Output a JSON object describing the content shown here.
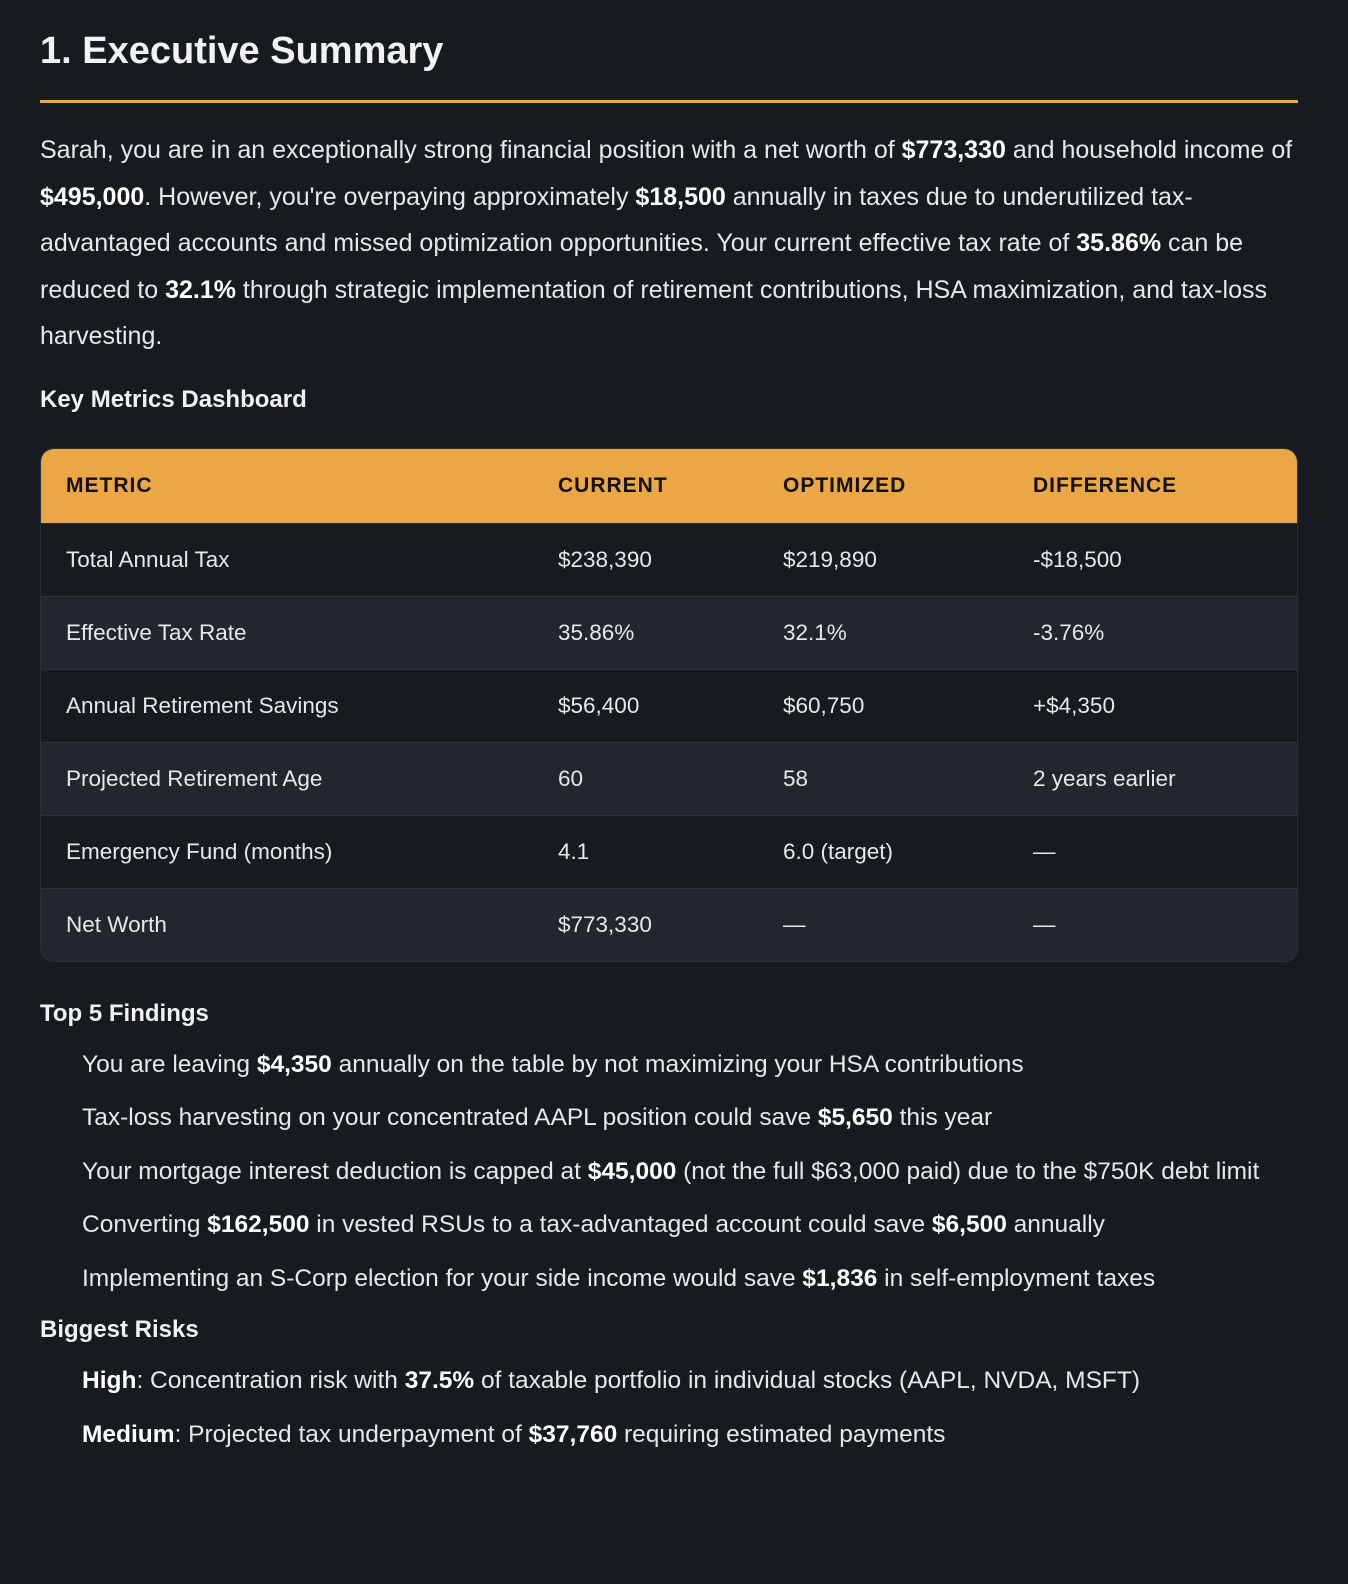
{
  "title": "1. Executive Summary",
  "intro": [
    {
      "t": "Sarah, you are in an exceptionally strong financial position with a net worth of "
    },
    {
      "t": "$773,330",
      "b": true
    },
    {
      "t": " and household income of "
    },
    {
      "t": "$495,000",
      "b": true
    },
    {
      "t": ". However, you're overpaying approximately "
    },
    {
      "t": "$18,500",
      "b": true
    },
    {
      "t": " annually in taxes due to underutilized tax-advantaged accounts and missed optimization opportunities. Your current effective tax rate of "
    },
    {
      "t": "35.86%",
      "b": true
    },
    {
      "t": " can be reduced to "
    },
    {
      "t": "32.1%",
      "b": true
    },
    {
      "t": " through strategic implementation of retirement contributions, HSA maximization, and tax-loss harvesting."
    }
  ],
  "metrics": {
    "heading": "Key Metrics Dashboard",
    "columns": [
      "METRIC",
      "CURRENT",
      "OPTIMIZED",
      "DIFFERENCE"
    ],
    "rows": [
      [
        "Total Annual Tax",
        "$238,390",
        "$219,890",
        "-$18,500"
      ],
      [
        "Effective Tax Rate",
        "35.86%",
        "32.1%",
        "-3.76%"
      ],
      [
        "Annual Retirement Savings",
        "$56,400",
        "$60,750",
        "+$4,350"
      ],
      [
        "Projected Retirement Age",
        "60",
        "58",
        "2 years earlier"
      ],
      [
        "Emergency Fund (months)",
        "4.1",
        "6.0 (target)",
        "—"
      ],
      [
        "Net Worth",
        "$773,330",
        "—",
        "—"
      ]
    ]
  },
  "findings": {
    "heading": "Top 5 Findings",
    "items": [
      [
        {
          "t": "You are leaving "
        },
        {
          "t": "$4,350",
          "b": true
        },
        {
          "t": " annually on the table by not maximizing your HSA contributions"
        }
      ],
      [
        {
          "t": "Tax-loss harvesting on your concentrated AAPL position could save "
        },
        {
          "t": "$5,650",
          "b": true
        },
        {
          "t": " this year"
        }
      ],
      [
        {
          "t": "Your mortgage interest deduction is capped at "
        },
        {
          "t": "$45,000",
          "b": true
        },
        {
          "t": " (not the full $63,000 paid) due to the $750K debt limit"
        }
      ],
      [
        {
          "t": "Converting "
        },
        {
          "t": "$162,500",
          "b": true
        },
        {
          "t": " in vested RSUs to a tax-advantaged account could save "
        },
        {
          "t": "$6,500",
          "b": true
        },
        {
          "t": " annually"
        }
      ],
      [
        {
          "t": "Implementing an S-Corp election for your side income would save "
        },
        {
          "t": "$1,836",
          "b": true
        },
        {
          "t": " in self-employment taxes"
        }
      ]
    ]
  },
  "risks": {
    "heading": "Biggest Risks",
    "items": [
      [
        {
          "t": "High",
          "b": true
        },
        {
          "t": ": Concentration risk with "
        },
        {
          "t": "37.5%",
          "b": true
        },
        {
          "t": " of taxable portfolio in individual stocks (AAPL, NVDA, MSFT)"
        }
      ],
      [
        {
          "t": "Medium",
          "b": true
        },
        {
          "t": ": Projected tax underpayment of "
        },
        {
          "t": "$37,760",
          "b": true
        },
        {
          "t": " requiring estimated payments"
        }
      ]
    ]
  },
  "colors": {
    "accent": "#eba746",
    "background": "#161b1f",
    "row_alt": "#22272e"
  }
}
